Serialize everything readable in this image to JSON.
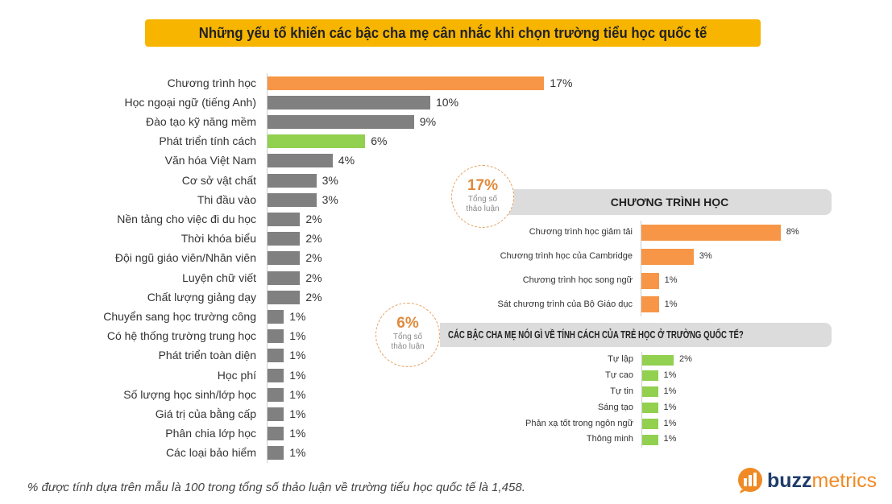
{
  "chart_data": [
    {
      "type": "bar",
      "orientation": "horizontal",
      "title": "Những yếu tố khiến các bậc cha mẹ cân nhắc khi chọn trường tiểu học quốc tế",
      "categories": [
        "Chương trình học",
        "Học ngoại ngữ (tiếng Anh)",
        "Đào tạo kỹ năng mềm",
        "Phát triển tính cách",
        "Văn hóa Việt Nam",
        "Cơ sở vật chất",
        "Thi đầu vào",
        "Nền tảng cho việc đi du học",
        "Thời khóa biểu",
        "Đội ngũ giáo viên/Nhân viên",
        "Luyện chữ viết",
        "Chất lượng giảng dạy",
        "Chuyển sang học trường công",
        "Có hệ thống trường trung học",
        "Phát triển toàn diện",
        "Học phí",
        "Số lượng học sinh/lớp học",
        "Giá trị của bằng cấp",
        "Phân chia lớp học",
        "Các loại bảo hiểm"
      ],
      "values": [
        17,
        10,
        9,
        6,
        4,
        3,
        3,
        2,
        2,
        2,
        2,
        2,
        1,
        1,
        1,
        1,
        1,
        1,
        1,
        1
      ],
      "labels": [
        "17%",
        "10%",
        "9%",
        "6%",
        "4%",
        "3%",
        "3%",
        "2%",
        "2%",
        "2%",
        "2%",
        "2%",
        "1%",
        "1%",
        "1%",
        "1%",
        "1%",
        "1%",
        "1%",
        "1%"
      ],
      "colors": [
        "#f79646",
        "#808080",
        "#808080",
        "#92d050",
        "#808080",
        "#808080",
        "#808080",
        "#808080",
        "#808080",
        "#808080",
        "#808080",
        "#808080",
        "#808080",
        "#808080",
        "#808080",
        "#808080",
        "#808080",
        "#808080",
        "#808080",
        "#808080"
      ]
    },
    {
      "type": "bar",
      "orientation": "horizontal",
      "title": "CHƯƠNG TRÌNH HỌC",
      "badge_value": "17%",
      "badge_text": "Tổng số thảo luận",
      "categories": [
        "Chương trình học giảm tải",
        "Chương trình học của Cambridge",
        "Chương trình học song ngữ",
        "Sát chương trình của Bộ Giáo dục"
      ],
      "values": [
        8,
        3,
        1,
        1
      ],
      "labels": [
        "8%",
        "3%",
        "1%",
        "1%"
      ],
      "color": "#f79646"
    },
    {
      "type": "bar",
      "orientation": "horizontal",
      "title": "CÁC BẬC CHA MẸ NÓI GÌ VỀ TÍNH CÁCH CỦA TRẺ HỌC Ở TRƯỜNG QUỐC TẾ?",
      "badge_value": "6%",
      "badge_text": "Tổng số thảo luận",
      "categories": [
        "Tự lập",
        "Tự cao",
        "Tự tin",
        "Sáng tạo",
        "Phản xạ tốt trong ngôn ngữ",
        "Thông minh"
      ],
      "values": [
        2,
        1,
        1,
        1,
        1,
        1
      ],
      "labels": [
        "2%",
        "1%",
        "1%",
        "1%",
        "1%",
        "1%"
      ],
      "color": "#92d050"
    }
  ],
  "footnote": "% được tính dựa trên mẫu là 100 trong tổng số thảo luận về trường tiểu học quốc tế là 1,458.",
  "logo": {
    "part1": "buzz",
    "part2": "metrics"
  }
}
